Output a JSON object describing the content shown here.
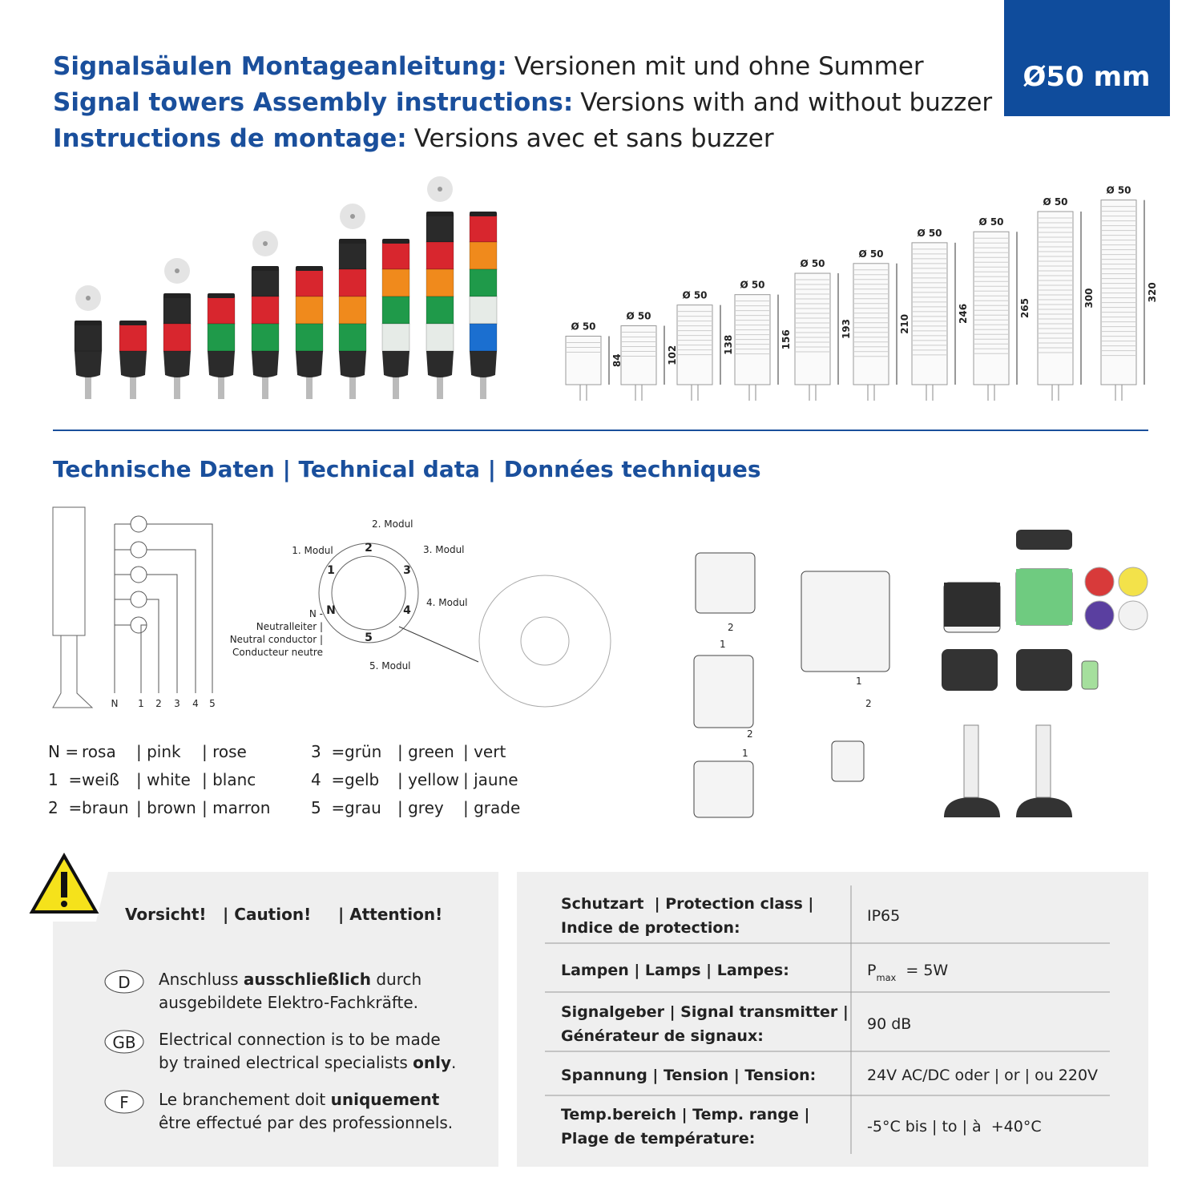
{
  "header": {
    "title_lines": [
      {
        "bold": "Signalsäulen Montageanleitung:",
        "normal": "Versionen mit und ohne Summer"
      },
      {
        "bold": "Signal towers Assembly instructions:",
        "normal": "Versions with and without buzzer"
      },
      {
        "bold": "Instructions de montage:",
        "normal": "Versions avec et sans buzzer"
      }
    ],
    "badge": "Ø50 mm"
  },
  "dimensions": {
    "diameter_label": "Ø 50",
    "heights": [
      84,
      102,
      138,
      156,
      193,
      210,
      246,
      265,
      300,
      320
    ]
  },
  "technical": {
    "title": "Technische Daten | Technical data | Données techniques",
    "wiring_labels": [
      "N",
      "1",
      "2",
      "3",
      "4",
      "5"
    ],
    "modules": [
      "1. Modul",
      "2. Modul",
      "3. Modul",
      "4. Modul",
      "5. Modul"
    ],
    "ring_numbers": [
      "1",
      "2",
      "3",
      "4",
      "5",
      "N"
    ],
    "neutral": [
      "N -",
      "Neutralleiter |",
      "Neutral conductor |",
      "Conducteur neutre"
    ],
    "assembly_labels": [
      "2",
      "1",
      "2",
      "1",
      "1",
      "2"
    ],
    "color_codes": [
      {
        "key": "N =",
        "de": "rosa",
        "en": "| pink",
        "fr": "| rose"
      },
      {
        "key": "1  =",
        "de": "weiß",
        "en": "| white",
        "fr": "| blanc"
      },
      {
        "key": "2  =",
        "de": "braun",
        "en": "| brown",
        "fr": "| marron"
      },
      {
        "key": "3  =",
        "de": "grün",
        "en": "| green",
        "fr": "| vert"
      },
      {
        "key": "4  =",
        "de": "gelb",
        "en": "| yellow",
        "fr": "| jaune"
      },
      {
        "key": "5  =",
        "de": "grau",
        "en": "| grey",
        "fr": "| grade"
      }
    ]
  },
  "caution": {
    "heading": [
      "Vorsicht!",
      "| Caution!",
      "| Attention!"
    ],
    "entries": [
      {
        "code": "D",
        "lines": [
          [
            {
              "text": "Anschluss "
            },
            {
              "text": "ausschließlich",
              "bold": true
            },
            {
              "text": " durch"
            }
          ],
          [
            {
              "text": "ausgebildete Elektro-Fachkräfte."
            }
          ]
        ]
      },
      {
        "code": "GB",
        "lines": [
          [
            {
              "text": "Electrical connection is to be made"
            }
          ],
          [
            {
              "text": "by trained electrical specialists "
            },
            {
              "text": "only",
              "bold": true
            },
            {
              "text": "."
            }
          ]
        ]
      },
      {
        "code": "F",
        "lines": [
          [
            {
              "text": "Le branchement doit "
            },
            {
              "text": "uniquement",
              "bold": true
            }
          ],
          [
            {
              "text": "être effectué par des professionnels."
            }
          ]
        ]
      }
    ]
  },
  "specs": {
    "rows": [
      {
        "label": [
          "Schutzart  | Protection class |",
          "Indice de protection:"
        ],
        "value": [
          {
            "text": "IP65"
          }
        ]
      },
      {
        "label": [
          "Lampen | Lamps | Lampes:"
        ],
        "value": [
          {
            "text": "P"
          },
          {
            "text": "max",
            "sub": true
          },
          {
            "text": "  = 5W"
          }
        ]
      },
      {
        "label": [
          "Signalgeber | Signal transmitter |",
          "Générateur de signaux:"
        ],
        "value": [
          {
            "text": "90 dB"
          }
        ]
      },
      {
        "label": [
          "Spannung | Tension | Tension:"
        ],
        "value": [
          {
            "text": "24V AC/DC oder | or | ou 220V"
          }
        ]
      },
      {
        "label": [
          "Temp.bereich | Temp. range |",
          "Plage de température:"
        ],
        "value": [
          {
            "text": "-5°C bis | to | à  +40°C"
          }
        ]
      }
    ]
  }
}
